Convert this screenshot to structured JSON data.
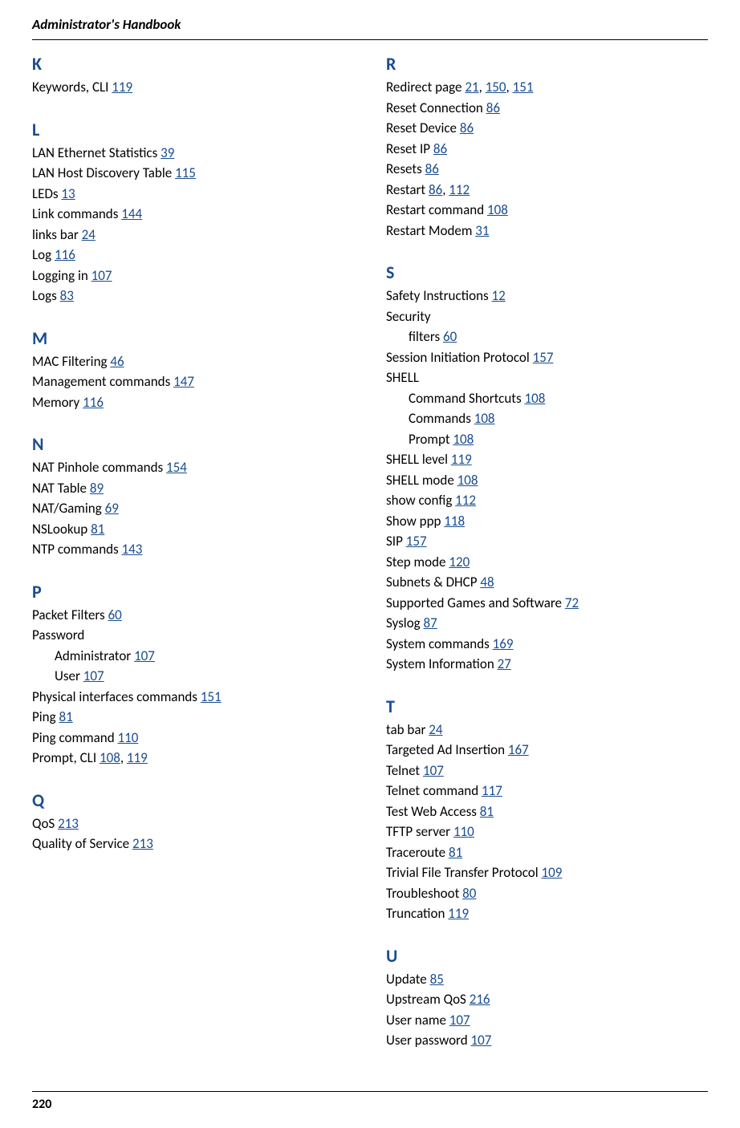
{
  "header": {
    "title": "Administrator's Handbook",
    "page_number": "220"
  },
  "colors": {
    "link": "#1a4d8f",
    "text": "#000000",
    "background": "#ffffff"
  },
  "index": {
    "left": [
      {
        "letter": "K",
        "entries": [
          {
            "label": "Keywords, CLI",
            "pages": [
              "119"
            ]
          }
        ]
      },
      {
        "letter": "L",
        "entries": [
          {
            "label": "LAN Ethernet Statistics",
            "pages": [
              "39"
            ]
          },
          {
            "label": "LAN Host Discovery Table",
            "pages": [
              "115"
            ]
          },
          {
            "label": "LEDs",
            "pages": [
              "13"
            ]
          },
          {
            "label": "Link commands",
            "pages": [
              "144"
            ]
          },
          {
            "label": "links bar",
            "pages": [
              "24"
            ]
          },
          {
            "label": "Log",
            "pages": [
              "116"
            ]
          },
          {
            "label": "Logging in",
            "pages": [
              "107"
            ]
          },
          {
            "label": "Logs",
            "pages": [
              "83"
            ]
          }
        ]
      },
      {
        "letter": "M",
        "entries": [
          {
            "label": "MAC Filtering",
            "pages": [
              "46"
            ]
          },
          {
            "label": "Management commands",
            "pages": [
              "147"
            ]
          },
          {
            "label": "Memory",
            "pages": [
              "116"
            ]
          }
        ]
      },
      {
        "letter": "N",
        "entries": [
          {
            "label": "NAT Pinhole commands",
            "pages": [
              "154"
            ]
          },
          {
            "label": "NAT Table",
            "pages": [
              "89"
            ]
          },
          {
            "label": "NAT/Gaming",
            "pages": [
              "69"
            ]
          },
          {
            "label": "NSLookup",
            "pages": [
              "81"
            ]
          },
          {
            "label": "NTP commands",
            "pages": [
              "143"
            ]
          }
        ]
      },
      {
        "letter": "P",
        "entries": [
          {
            "label": "Packet Filters",
            "pages": [
              "60"
            ]
          },
          {
            "label": "Password",
            "sub": [
              {
                "label": "Administrator",
                "pages": [
                  "107"
                ]
              },
              {
                "label": "User",
                "pages": [
                  "107"
                ]
              }
            ]
          },
          {
            "label": "Physical interfaces commands",
            "pages": [
              "151"
            ]
          },
          {
            "label": "Ping",
            "pages": [
              "81"
            ]
          },
          {
            "label": "Ping command",
            "pages": [
              "110"
            ]
          },
          {
            "label": "Prompt, CLI",
            "pages": [
              "108",
              "119"
            ]
          }
        ]
      },
      {
        "letter": "Q",
        "entries": [
          {
            "label": "QoS",
            "pages": [
              "213"
            ]
          },
          {
            "label": "Quality of Service",
            "pages": [
              "213"
            ]
          }
        ]
      }
    ],
    "right": [
      {
        "letter": "R",
        "entries": [
          {
            "label": "Redirect page",
            "pages": [
              "21",
              "150",
              "151"
            ]
          },
          {
            "label": "Reset Connection",
            "pages": [
              "86"
            ]
          },
          {
            "label": "Reset Device",
            "pages": [
              "86"
            ]
          },
          {
            "label": "Reset IP",
            "pages": [
              "86"
            ]
          },
          {
            "label": "Resets",
            "pages": [
              "86"
            ]
          },
          {
            "label": "Restart",
            "pages": [
              "86",
              "112"
            ]
          },
          {
            "label": "Restart command",
            "pages": [
              "108"
            ]
          },
          {
            "label": "Restart Modem",
            "pages": [
              "31"
            ]
          }
        ]
      },
      {
        "letter": "S",
        "entries": [
          {
            "label": "Safety Instructions",
            "pages": [
              "12"
            ]
          },
          {
            "label": "Security",
            "sub": [
              {
                "label": "filters",
                "pages": [
                  "60"
                ]
              }
            ]
          },
          {
            "label": "Session Initiation Protocol",
            "pages": [
              "157"
            ]
          },
          {
            "label": "SHELL",
            "sub": [
              {
                "label": "Command Shortcuts",
                "pages": [
                  "108"
                ]
              },
              {
                "label": "Commands",
                "pages": [
                  "108"
                ]
              },
              {
                "label": "Prompt",
                "pages": [
                  "108"
                ]
              }
            ]
          },
          {
            "label": "SHELL level",
            "pages": [
              "119"
            ]
          },
          {
            "label": "SHELL mode",
            "pages": [
              "108"
            ]
          },
          {
            "label": "show config",
            "pages": [
              "112"
            ]
          },
          {
            "label": "Show ppp",
            "pages": [
              "118"
            ]
          },
          {
            "label": "SIP",
            "pages": [
              "157"
            ]
          },
          {
            "label": "Step mode",
            "pages": [
              "120"
            ]
          },
          {
            "label": "Subnets & DHCP",
            "pages": [
              "48"
            ]
          },
          {
            "label": "Supported Games and Software",
            "pages": [
              "72"
            ]
          },
          {
            "label": "Syslog",
            "pages": [
              "87"
            ]
          },
          {
            "label": "System commands",
            "pages": [
              "169"
            ]
          },
          {
            "label": "System Information",
            "pages": [
              "27"
            ]
          }
        ]
      },
      {
        "letter": "T",
        "entries": [
          {
            "label": "tab bar",
            "pages": [
              "24"
            ]
          },
          {
            "label": "Targeted Ad Insertion",
            "pages": [
              "167"
            ]
          },
          {
            "label": "Telnet",
            "pages": [
              "107"
            ]
          },
          {
            "label": "Telnet command",
            "pages": [
              "117"
            ]
          },
          {
            "label": "Test Web Access",
            "pages": [
              "81"
            ]
          },
          {
            "label": "TFTP server",
            "pages": [
              "110"
            ]
          },
          {
            "label": "Traceroute",
            "pages": [
              "81"
            ]
          },
          {
            "label": "Trivial File Transfer Protocol",
            "pages": [
              "109"
            ]
          },
          {
            "label": "Troubleshoot",
            "pages": [
              "80"
            ]
          },
          {
            "label": "Truncation",
            "pages": [
              "119"
            ]
          }
        ]
      },
      {
        "letter": "U",
        "entries": [
          {
            "label": "Update",
            "pages": [
              "85"
            ]
          },
          {
            "label": "Upstream QoS",
            "pages": [
              "216"
            ]
          },
          {
            "label": "User name",
            "pages": [
              "107"
            ]
          },
          {
            "label": "User password",
            "pages": [
              "107"
            ]
          }
        ]
      }
    ]
  }
}
